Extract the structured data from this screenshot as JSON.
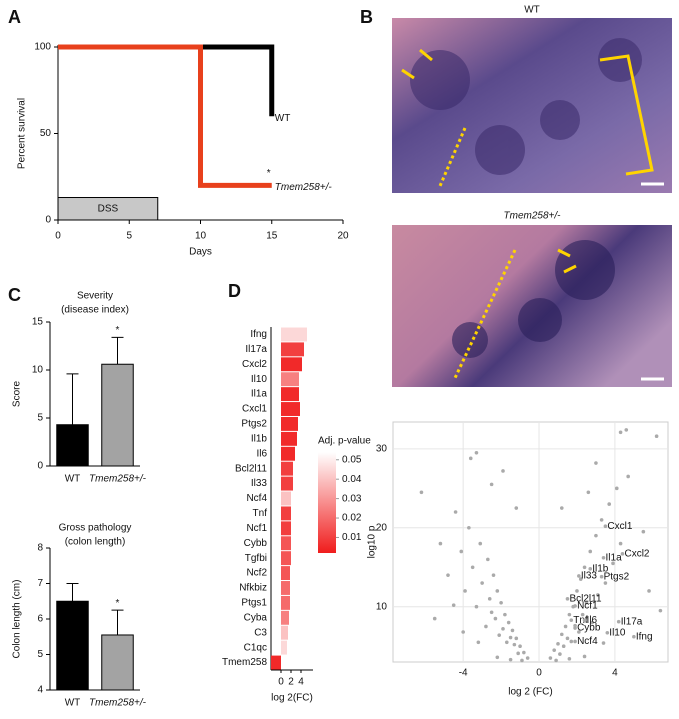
{
  "panel_labels": [
    "A",
    "B",
    "C",
    "D"
  ],
  "images": [
    {
      "label": "WT"
    },
    {
      "label": "Tmem258+/-"
    }
  ],
  "chart_data": [
    {
      "type": "line",
      "ylabel": "Percent survival",
      "xlabel": "Days",
      "xlim": [
        0,
        20
      ],
      "ylim": [
        0,
        100
      ],
      "xticks": [
        0,
        5,
        10,
        15,
        20
      ],
      "yticks": [
        0,
        50,
        100
      ],
      "series": [
        {
          "name": "WT",
          "color": "#000000",
          "x": [
            0,
            15,
            15
          ],
          "values": [
            100,
            100,
            60
          ]
        },
        {
          "name": "Tmem258+/-",
          "color": "#e8401c",
          "x": [
            0,
            10,
            10,
            15
          ],
          "values": [
            100,
            100,
            20,
            20
          ]
        }
      ],
      "annotations": [
        "*"
      ],
      "shaded_region": {
        "label": "DSS",
        "x": [
          0,
          7
        ],
        "y": [
          0,
          13
        ]
      }
    },
    {
      "type": "bar",
      "title": "Severity",
      "subtitle": "(disease index)",
      "ylabel": "Score",
      "categories": [
        "WT",
        "Tmem258+/-"
      ],
      "values": [
        4.3,
        10.6
      ],
      "errors": [
        5.3,
        2.8
      ],
      "colors": [
        "#000000",
        "#a3a3a3"
      ],
      "ylim": [
        0,
        15
      ],
      "yticks": [
        0,
        5,
        10,
        15
      ],
      "annotations": [
        "*"
      ]
    },
    {
      "type": "bar",
      "title": "Gross pathology",
      "subtitle": "(colon length)",
      "ylabel": "Colon length (cm)",
      "categories": [
        "WT",
        "Tmem258+/-"
      ],
      "values": [
        6.5,
        5.55
      ],
      "errors": [
        0.5,
        0.7
      ],
      "colors": [
        "#000000",
        "#a3a3a3"
      ],
      "ylim": [
        4,
        8
      ],
      "yticks": [
        4,
        5,
        6,
        7,
        8
      ],
      "annotations": [
        "*"
      ]
    },
    {
      "type": "hbar",
      "xlabel": "log 2(FC)",
      "categories": [
        "Ifng",
        "Il17a",
        "Cxcl2",
        "Il10",
        "Il1a",
        "Cxcl1",
        "Ptgs2",
        "Il1b",
        "Il6",
        "Bcl2l11",
        "Il33",
        "Ncf4",
        "Tnf",
        "Ncf1",
        "Cybb",
        "Tgfbi",
        "Ncf2",
        "Nfkbiz",
        "Ptgs1",
        "Cyba",
        "C3",
        "C1qc",
        "Tmem258"
      ],
      "values": [
        5.2,
        4.6,
        4.2,
        3.6,
        3.6,
        3.8,
        3.4,
        3.2,
        2.8,
        2.4,
        2.4,
        2.0,
        2.0,
        2.0,
        2.0,
        2.0,
        1.8,
        1.8,
        1.8,
        1.6,
        1.4,
        1.2,
        -2.0
      ],
      "padj": [
        0.045,
        0.01,
        0.005,
        0.025,
        0.005,
        0.005,
        0.005,
        0.005,
        0.005,
        0.01,
        0.01,
        0.04,
        0.01,
        0.01,
        0.015,
        0.015,
        0.015,
        0.02,
        0.02,
        0.025,
        0.04,
        0.045,
        0.005
      ],
      "xlim": [
        -2,
        6.4
      ],
      "xticks": [
        0,
        2,
        4
      ],
      "colorbar": {
        "title": "Adj. p-value",
        "lim": [
          0.002,
          0.054
        ],
        "ticks": [
          0.05,
          0.04,
          0.03,
          0.02,
          0.01
        ],
        "colors": [
          "#f01c1c",
          "#ffffff"
        ]
      }
    },
    {
      "type": "scatter",
      "xlabel": "log 2 (FC)",
      "ylabel": "log10 p",
      "color": "#aaaaaa",
      "grid": true,
      "xlim": [
        -7.7,
        6.8
      ],
      "ylim": [
        3,
        33.4
      ],
      "xticks": [
        -4,
        0,
        4
      ],
      "yticks": [
        10,
        20,
        30
      ],
      "x": [
        -0.6,
        -0.8,
        -1.0,
        -1.1,
        -1.2,
        -1.3,
        -1.4,
        -1.5,
        -1.6,
        -1.7,
        -1.8,
        -1.9,
        -2.0,
        -2.1,
        -2.2,
        -2.3,
        -2.4,
        -2.5,
        -2.6,
        -2.7,
        -2.8,
        -3.0,
        -3.1,
        -3.3,
        -3.5,
        -3.7,
        -3.9,
        -4.1,
        -4.4,
        -4.8,
        -5.2,
        -6.2,
        -3.6,
        -3.3,
        -1.9,
        -2.5,
        -1.2,
        -4.5,
        -5.5,
        -3.2,
        -2.2,
        -1.5,
        -0.9,
        -4.0,
        0.6,
        0.8,
        1.0,
        1.1,
        1.2,
        1.3,
        1.4,
        1.5,
        1.6,
        1.7,
        1.8,
        1.9,
        2.0,
        2.1,
        2.2,
        2.3,
        2.4,
        2.5,
        2.7,
        2.8,
        3.0,
        3.1,
        3.3,
        3.5,
        3.7,
        3.9,
        4.1,
        4.3,
        4.3,
        4.6,
        6.2,
        3.0,
        4.7,
        5.5,
        5.8,
        1.2,
        2.6,
        0.9,
        1.6,
        2.4,
        3.4,
        6.4
      ],
      "values": [
        3.5,
        4.2,
        5,
        4.1,
        6,
        5.2,
        7,
        6.1,
        8,
        5.5,
        9,
        7.2,
        10.5,
        6.4,
        12,
        8.5,
        14,
        9.3,
        11,
        16,
        7.5,
        13,
        18,
        10,
        15,
        20,
        12,
        17,
        22,
        14,
        18,
        24.5,
        28.8,
        29.5,
        27.2,
        25.5,
        22.5,
        10.2,
        8.5,
        5.5,
        3.6,
        3.3,
        3.2,
        6.8,
        3.5,
        4.5,
        5.3,
        4,
        6.5,
        5,
        7.5,
        6,
        9,
        5.6,
        10,
        7.6,
        12,
        6.8,
        13.5,
        9,
        15,
        10.5,
        17,
        8,
        19,
        11.5,
        21,
        13,
        23,
        15.5,
        25,
        18,
        32.1,
        32.4,
        31.6,
        28.2,
        26.5,
        19.5,
        12,
        22.5,
        24.5,
        3.2,
        3.4,
        3.7,
        5.4,
        9.5
      ],
      "labeled": {
        "names": [
          "Cxcl1",
          "Cxcl2",
          "Il1a",
          "Il1b",
          "Il33",
          "Ptgs2",
          "Bcl2l11",
          "Ncf1",
          "Tnf",
          "Il6",
          "Cybb",
          "Il17a",
          "Il10",
          "Ifng",
          "Ncf4"
        ],
        "x": [
          3.5,
          4.4,
          3.4,
          2.7,
          2.1,
          3.3,
          1.5,
          1.9,
          1.7,
          2.4,
          1.9,
          4.2,
          3.6,
          5.0,
          1.9
        ],
        "y": [
          20.2,
          16.7,
          16.2,
          14.8,
          13.9,
          13.8,
          11.0,
          10.1,
          8.3,
          8.3,
          7.3,
          8.1,
          6.7,
          6.2,
          5.6
        ]
      }
    }
  ]
}
